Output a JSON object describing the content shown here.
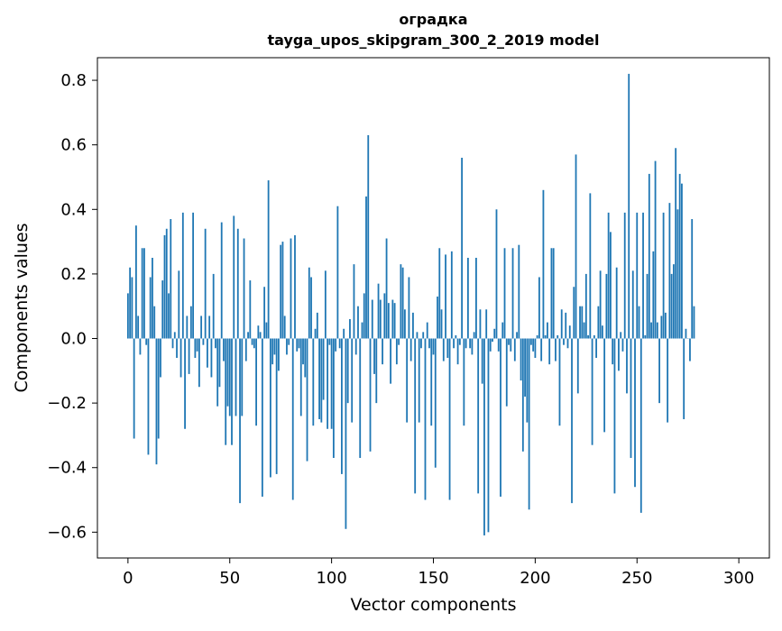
{
  "chart_data": {
    "type": "bar",
    "title": "оградка",
    "subtitle": "tayga_upos_skipgram_300_2_2019 model",
    "xlabel": "Vector components",
    "ylabel": "Components values",
    "xlim": [
      -15,
      315
    ],
    "ylim": [
      -0.68,
      0.87
    ],
    "xticks": [
      0,
      50,
      100,
      150,
      200,
      250,
      300
    ],
    "xtick_labels": [
      "0",
      "50",
      "100",
      "150",
      "200",
      "250",
      "300"
    ],
    "yticks": [
      -0.6,
      -0.4,
      -0.2,
      0.0,
      0.2,
      0.4,
      0.6,
      0.8
    ],
    "ytick_labels": [
      "−0.6",
      "−0.4",
      "−0.2",
      "0.0",
      "0.2",
      "0.4",
      "0.6",
      "0.8"
    ],
    "bar_color": "#1f77b4",
    "grid": false,
    "values": [
      0.14,
      0.22,
      0.19,
      -0.31,
      0.35,
      0.07,
      -0.05,
      0.28,
      0.28,
      -0.02,
      -0.36,
      0.19,
      0.25,
      0.1,
      -0.39,
      -0.31,
      -0.12,
      0.18,
      0.32,
      0.34,
      0.14,
      0.37,
      -0.03,
      0.02,
      -0.06,
      0.21,
      -0.12,
      0.39,
      -0.28,
      0.07,
      -0.11,
      0.1,
      0.39,
      -0.06,
      -0.04,
      -0.15,
      0.07,
      -0.02,
      0.34,
      -0.09,
      0.07,
      -0.12,
      0.2,
      -0.03,
      -0.21,
      -0.15,
      0.36,
      -0.07,
      -0.33,
      -0.21,
      -0.24,
      -0.33,
      0.38,
      -0.24,
      0.34,
      -0.51,
      -0.24,
      0.31,
      -0.07,
      0.02,
      0.18,
      -0.02,
      -0.03,
      -0.27,
      0.04,
      0.02,
      -0.49,
      0.16,
      0.05,
      0.49,
      -0.43,
      -0.08,
      -0.05,
      -0.42,
      -0.1,
      0.29,
      0.3,
      0.07,
      -0.05,
      -0.02,
      0.31,
      -0.5,
      0.32,
      -0.04,
      -0.03,
      -0.24,
      -0.08,
      -0.12,
      -0.38,
      0.22,
      0.19,
      -0.27,
      0.03,
      0.08,
      -0.25,
      -0.26,
      -0.19,
      0.21,
      -0.28,
      -0.02,
      -0.28,
      -0.37,
      -0.04,
      0.41,
      -0.03,
      -0.42,
      0.03,
      -0.59,
      -0.2,
      0.06,
      -0.26,
      0.23,
      -0.05,
      0.1,
      -0.37,
      0.05,
      0.14,
      0.44,
      0.63,
      -0.35,
      0.12,
      -0.11,
      -0.2,
      0.17,
      0.12,
      -0.08,
      0.14,
      0.31,
      0.11,
      -0.14,
      0.12,
      0.11,
      -0.08,
      -0.02,
      0.23,
      0.22,
      0.09,
      -0.26,
      0.19,
      -0.07,
      0.08,
      -0.48,
      0.02,
      -0.26,
      -0.03,
      0.02,
      -0.5,
      0.05,
      -0.03,
      -0.27,
      -0.05,
      -0.4,
      0.13,
      0.28,
      0.09,
      -0.07,
      0.26,
      -0.06,
      -0.5,
      0.27,
      -0.03,
      0.01,
      -0.08,
      -0.02,
      0.56,
      -0.27,
      -0.03,
      0.25,
      -0.03,
      -0.05,
      0.02,
      0.25,
      -0.48,
      0.09,
      -0.14,
      -0.61,
      0.09,
      -0.6,
      -0.04,
      -0.01,
      0.03,
      0.4,
      -0.04,
      -0.49,
      0.05,
      0.28,
      -0.21,
      -0.02,
      -0.04,
      0.28,
      -0.07,
      0.02,
      0.29,
      -0.13,
      -0.35,
      -0.18,
      -0.26,
      -0.53,
      -0.02,
      -0.04,
      -0.06,
      0.01,
      0.19,
      -0.07,
      0.46,
      0.01,
      0.05,
      -0.08,
      0.28,
      0.28,
      -0.07,
      0.01,
      -0.27,
      0.09,
      -0.02,
      0.08,
      -0.03,
      0.04,
      -0.51,
      0.16,
      0.57,
      -0.17,
      0.1,
      0.1,
      0.05,
      0.2,
      0.01,
      0.45,
      -0.33,
      0.01,
      -0.06,
      0.1,
      0.21,
      0.04,
      -0.29,
      0.2,
      0.39,
      0.33,
      -0.08,
      -0.48,
      0.22,
      -0.1,
      0.02,
      -0.04,
      0.39,
      -0.17,
      0.82,
      -0.37,
      0.21,
      -0.46,
      0.39,
      0.1,
      -0.54,
      0.39,
      0.01,
      0.2,
      0.51,
      0.05,
      0.27,
      0.55,
      0.05,
      -0.2,
      0.07,
      0.39,
      0.08,
      -0.26,
      0.42,
      0.2,
      0.23,
      0.59,
      0.4,
      0.51,
      0.48,
      -0.25,
      0.03,
      0.0,
      -0.07,
      0.37,
      0.1
    ]
  }
}
